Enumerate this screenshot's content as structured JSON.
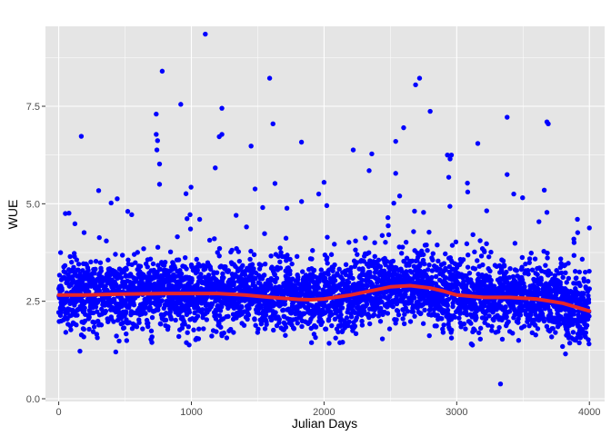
{
  "chart_data": {
    "type": "scatter",
    "title": "",
    "xlabel": "Julian Days",
    "ylabel": "WUE",
    "xlim": [
      -100,
      4115
    ],
    "ylim": [
      -0.07,
      9.55
    ],
    "x_ticks": [
      0,
      1000,
      2000,
      3000,
      4000
    ],
    "x_tick_labels": [
      "0",
      "1000",
      "2000",
      "3000",
      "4000"
    ],
    "y_ticks": [
      0.0,
      2.5,
      5.0,
      7.5
    ],
    "y_tick_labels": [
      "0.0",
      "2.5",
      "5.0",
      "7.5"
    ],
    "grid": true,
    "legend": "none",
    "colors": {
      "panel_background": "#e5e5e5",
      "grid_major": "#ffffff",
      "points": "#0000ff",
      "smooth_line": "#e8262a"
    },
    "series": [
      {
        "kind": "points",
        "n_points_approx": 4000,
        "x_range": [
          0,
          4000
        ],
        "typical_band": [
          1.8,
          3.3
        ],
        "bulk_mean_by_x": [
          [
            0,
            2.65
          ],
          [
            500,
            2.68
          ],
          [
            1000,
            2.7
          ],
          [
            1200,
            2.7
          ],
          [
            1500,
            2.63
          ],
          [
            1900,
            2.55
          ],
          [
            2200,
            2.65
          ],
          [
            2500,
            2.88
          ],
          [
            2650,
            2.9
          ],
          [
            2900,
            2.7
          ],
          [
            3100,
            2.6
          ],
          [
            3300,
            2.6
          ],
          [
            3600,
            2.55
          ],
          [
            3800,
            2.45
          ],
          [
            4000,
            2.25
          ]
        ],
        "outliers": [
          {
            "x": 1105,
            "y": 9.35
          },
          {
            "x": 780,
            "y": 8.4
          },
          {
            "x": 1590,
            "y": 8.22
          },
          {
            "x": 2720,
            "y": 8.22
          },
          {
            "x": 2690,
            "y": 8.05
          },
          {
            "x": 920,
            "y": 7.55
          },
          {
            "x": 1230,
            "y": 7.45
          },
          {
            "x": 2800,
            "y": 7.37
          },
          {
            "x": 735,
            "y": 7.3
          },
          {
            "x": 3380,
            "y": 7.22
          },
          {
            "x": 3680,
            "y": 7.1
          },
          {
            "x": 3690,
            "y": 7.05
          },
          {
            "x": 1615,
            "y": 7.05
          },
          {
            "x": 2600,
            "y": 6.95
          },
          {
            "x": 1230,
            "y": 6.78
          },
          {
            "x": 735,
            "y": 6.78
          },
          {
            "x": 1210,
            "y": 6.72
          },
          {
            "x": 745,
            "y": 6.62
          },
          {
            "x": 2540,
            "y": 6.6
          },
          {
            "x": 1830,
            "y": 6.58
          },
          {
            "x": 1450,
            "y": 6.48
          },
          {
            "x": 740,
            "y": 6.38
          },
          {
            "x": 2220,
            "y": 6.38
          },
          {
            "x": 2360,
            "y": 6.28
          },
          {
            "x": 2930,
            "y": 6.25
          },
          {
            "x": 2960,
            "y": 6.25
          },
          {
            "x": 2950,
            "y": 6.15
          },
          {
            "x": 760,
            "y": 6.02
          },
          {
            "x": 1180,
            "y": 5.92
          },
          {
            "x": 2340,
            "y": 5.85
          },
          {
            "x": 2540,
            "y": 5.78
          },
          {
            "x": 3380,
            "y": 5.75
          },
          {
            "x": 2940,
            "y": 5.68
          },
          {
            "x": 1630,
            "y": 5.52
          },
          {
            "x": 2000,
            "y": 5.55
          },
          {
            "x": 760,
            "y": 5.5
          },
          {
            "x": 1480,
            "y": 5.38
          },
          {
            "x": 3660,
            "y": 5.35
          },
          {
            "x": 3430,
            "y": 5.25
          },
          {
            "x": 1960,
            "y": 5.25
          },
          {
            "x": 2570,
            "y": 5.2
          },
          {
            "x": 395,
            "y": 5.02
          },
          {
            "x": 2750,
            "y": 4.78
          },
          {
            "x": 3680,
            "y": 4.78
          },
          {
            "x": 50,
            "y": 4.75
          },
          {
            "x": 550,
            "y": 4.72
          },
          {
            "x": 990,
            "y": 4.72
          },
          {
            "x": 4000,
            "y": 4.38
          },
          {
            "x": 3330,
            "y": 0.38
          },
          {
            "x": 3820,
            "y": 1.15
          },
          {
            "x": 160,
            "y": 1.22
          },
          {
            "x": 430,
            "y": 1.2
          },
          {
            "x": 1040,
            "y": 1.55
          },
          {
            "x": 2140,
            "y": 1.45
          }
        ]
      },
      {
        "kind": "smooth",
        "x": [
          0,
          200,
          400,
          600,
          800,
          1000,
          1200,
          1400,
          1600,
          1800,
          1900,
          2000,
          2200,
          2400,
          2500,
          2650,
          2800,
          2900,
          3000,
          3200,
          3400,
          3600,
          3800,
          4000
        ],
        "y": [
          2.66,
          2.66,
          2.68,
          2.69,
          2.7,
          2.7,
          2.7,
          2.66,
          2.6,
          2.55,
          2.54,
          2.56,
          2.66,
          2.8,
          2.87,
          2.9,
          2.84,
          2.76,
          2.66,
          2.6,
          2.6,
          2.56,
          2.45,
          2.25
        ]
      }
    ]
  }
}
